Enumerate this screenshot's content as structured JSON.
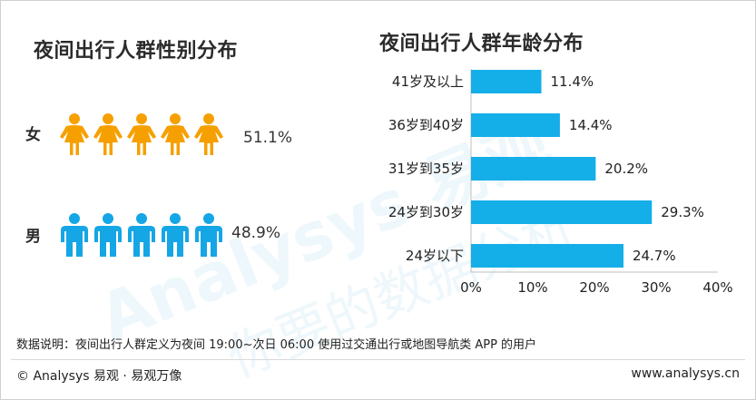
{
  "gender": {
    "title": "夜间出行人群性别分布",
    "female_label": "女",
    "female_value": "51.1%",
    "male_label": "男",
    "male_value": "48.9%",
    "female_color": "#f5a000",
    "male_color": "#15a6e6",
    "icon_count": 5
  },
  "chart_data": {
    "type": "bar",
    "orientation": "horizontal",
    "title": "夜间出行人群年龄分布",
    "categories": [
      "41岁及以上",
      "36岁到40岁",
      "31岁到35岁",
      "24岁到30岁",
      "24岁以下"
    ],
    "values": [
      11.4,
      14.4,
      20.2,
      29.3,
      24.7
    ],
    "value_labels": [
      "11.4%",
      "14.4%",
      "20.2%",
      "29.3%",
      "24.7%"
    ],
    "xlim": [
      0,
      40
    ],
    "xticks": [
      "0%",
      "10%",
      "20%",
      "30%",
      "40%"
    ],
    "bar_color": "#14aee8",
    "grid": false
  },
  "note": "数据说明：夜间出行人群定义为夜间 19:00~次日 06:00 使用过交通出行或地图导航类 APP 的用户",
  "footer": {
    "left": "© Analysys 易观 · 易观万像",
    "right": "www.analysys.cn"
  },
  "watermark": {
    "brand": "Analysys 易观",
    "slogan": "你要的数据分析"
  }
}
